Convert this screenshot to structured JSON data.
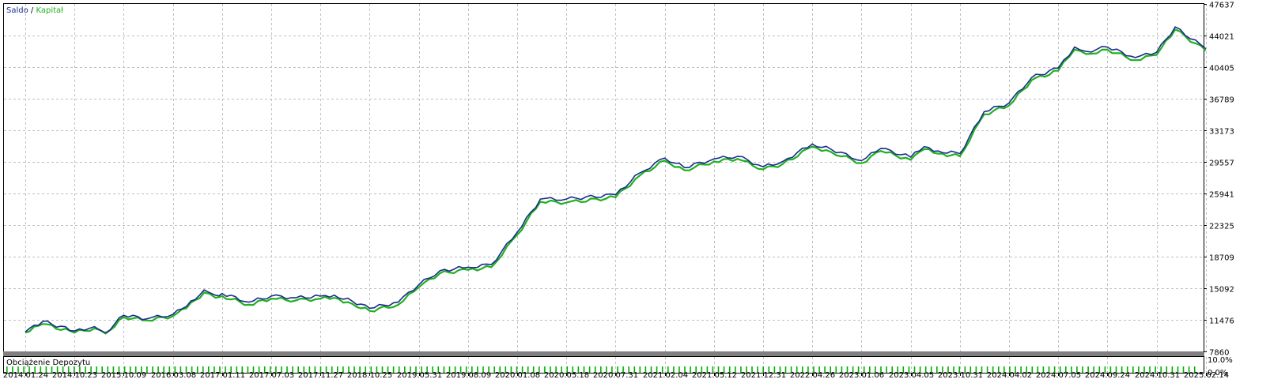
{
  "chart_data": [
    {
      "type": "line",
      "legend": {
        "balance_label": "Saldo",
        "separator": " / ",
        "equity_label": "Kapitał",
        "placement": "top-left"
      },
      "colors": {
        "balance": "#1a2c8c",
        "equity": "#1fb01f",
        "grid": "#c0c0c0",
        "background": "#ffffff"
      },
      "grid": true,
      "ylim": [
        7860,
        47637
      ],
      "yticks": [
        "47637",
        "44021",
        "40405",
        "36789",
        "33173",
        "29557",
        "25941",
        "22325",
        "18709",
        "15092",
        "11476",
        "7860"
      ],
      "x_dates": [
        "2014.01.24",
        "2014.10.23",
        "2015.10.09",
        "2016.03.08",
        "2017.01.11",
        "2017.07.03",
        "2017.11.27",
        "2018.10.25",
        "2019.05.31",
        "2019.08.09",
        "2020.01.08",
        "2020.05.18",
        "2020.07.31",
        "2021.02.04",
        "2021.05.12",
        "2021.12.31",
        "2022.04.26",
        "2023.01.06",
        "2023.04.05",
        "2023.10.31",
        "2024.04.02",
        "2024.07.05",
        "2024.09.24",
        "2024.10.31",
        "2025.02.14"
      ],
      "series": [
        {
          "name": "Saldo",
          "key": "balance",
          "points": [
            [
              "2014.01.24",
              10100
            ],
            [
              "2014.05.01",
              11300
            ],
            [
              "2014.10.23",
              10200
            ],
            [
              "2015.03.15",
              10700
            ],
            [
              "2015.06.01",
              10000
            ],
            [
              "2015.10.09",
              12000
            ],
            [
              "2015.12.20",
              11600
            ],
            [
              "2016.03.08",
              12100
            ],
            [
              "2016.06.01",
              13000
            ],
            [
              "2016.09.20",
              14900
            ],
            [
              "2016.12.01",
              14300
            ],
            [
              "2017.01.11",
              14500
            ],
            [
              "2017.04.15",
              13500
            ],
            [
              "2017.07.03",
              14200
            ],
            [
              "2017.09.15",
              14000
            ],
            [
              "2017.11.27",
              14200
            ],
            [
              "2018.03.01",
              14300
            ],
            [
              "2018.07.01",
              13600
            ],
            [
              "2018.10.25",
              12800
            ],
            [
              "2019.03.01",
              13500
            ],
            [
              "2019.05.31",
              15500
            ],
            [
              "2019.06.30",
              17100
            ],
            [
              "2019.08.09",
              17500
            ],
            [
              "2019.10.20",
              17800
            ],
            [
              "2020.01.08",
              21500
            ],
            [
              "2020.03.10",
              25300
            ],
            [
              "2020.05.18",
              25300
            ],
            [
              "2020.07.31",
              25800
            ],
            [
              "2020.11.01",
              28300
            ],
            [
              "2021.02.04",
              30000
            ],
            [
              "2021.03.15",
              28900
            ],
            [
              "2021.05.12",
              29900
            ],
            [
              "2021.09.01",
              30200
            ],
            [
              "2021.12.31",
              29000
            ],
            [
              "2022.02.15",
              29600
            ],
            [
              "2022.04.26",
              31600
            ],
            [
              "2022.08.01",
              31000
            ],
            [
              "2023.01.06",
              29700
            ],
            [
              "2023.02.10",
              31100
            ],
            [
              "2023.04.05",
              30100
            ],
            [
              "2023.06.01",
              31300
            ],
            [
              "2023.08.01",
              30800
            ],
            [
              "2023.10.31",
              30500
            ],
            [
              "2024.01.15",
              35300
            ],
            [
              "2024.04.02",
              36300
            ],
            [
              "2024.05.15",
              39200
            ],
            [
              "2024.07.05",
              40300
            ],
            [
              "2024.08.01",
              42700
            ],
            [
              "2024.08.20",
              42200
            ],
            [
              "2024.09.24",
              42700
            ],
            [
              "2024.10.15",
              41500
            ],
            [
              "2024.10.31",
              42100
            ],
            [
              "2024.12.10",
              45000
            ],
            [
              "2025.02.14",
              42500
            ]
          ]
        },
        {
          "name": "Kapitał",
          "key": "equity",
          "points": [
            [
              "2014.01.24",
              10000
            ],
            [
              "2014.05.01",
              11000
            ],
            [
              "2014.10.23",
              10000
            ],
            [
              "2015.03.15",
              10500
            ],
            [
              "2015.06.01",
              9900
            ],
            [
              "2015.10.09",
              11800
            ],
            [
              "2015.12.20",
              11400
            ],
            [
              "2016.03.08",
              11900
            ],
            [
              "2016.06.01",
              12800
            ],
            [
              "2016.09.20",
              14600
            ],
            [
              "2016.12.01",
              14000
            ],
            [
              "2017.01.11",
              14200
            ],
            [
              "2017.04.15",
              13200
            ],
            [
              "2017.07.03",
              13900
            ],
            [
              "2017.09.15",
              13700
            ],
            [
              "2017.11.27",
              13900
            ],
            [
              "2018.03.01",
              14000
            ],
            [
              "2018.07.01",
              13300
            ],
            [
              "2018.10.25",
              12500
            ],
            [
              "2019.03.01",
              13200
            ],
            [
              "2019.05.31",
              15200
            ],
            [
              "2019.06.30",
              16800
            ],
            [
              "2019.08.09",
              17200
            ],
            [
              "2019.10.20",
              17500
            ],
            [
              "2020.01.08",
              21200
            ],
            [
              "2020.03.10",
              25000
            ],
            [
              "2020.05.18",
              24900
            ],
            [
              "2020.07.31",
              25500
            ],
            [
              "2020.11.01",
              28000
            ],
            [
              "2021.02.04",
              29700
            ],
            [
              "2021.03.15",
              28600
            ],
            [
              "2021.05.12",
              29600
            ],
            [
              "2021.09.01",
              29900
            ],
            [
              "2021.12.31",
              28700
            ],
            [
              "2022.02.15",
              29300
            ],
            [
              "2022.04.26",
              31300
            ],
            [
              "2022.08.01",
              30700
            ],
            [
              "2023.01.06",
              29400
            ],
            [
              "2023.02.10",
              30800
            ],
            [
              "2023.04.05",
              29800
            ],
            [
              "2023.06.01",
              31000
            ],
            [
              "2023.08.01",
              30500
            ],
            [
              "2023.10.31",
              30200
            ],
            [
              "2024.01.15",
              35000
            ],
            [
              "2024.04.02",
              36000
            ],
            [
              "2024.05.15",
              38900
            ],
            [
              "2024.07.05",
              40000
            ],
            [
              "2024.08.01",
              42400
            ],
            [
              "2024.08.20",
              41900
            ],
            [
              "2024.09.24",
              42400
            ],
            [
              "2024.10.15",
              41200
            ],
            [
              "2024.10.31",
              41800
            ],
            [
              "2024.12.10",
              44700
            ],
            [
              "2025.02.14",
              42300
            ]
          ]
        }
      ]
    },
    {
      "type": "bar",
      "title": "Obciążenie Depozytu",
      "ylim": [
        0.0,
        10.0
      ],
      "yticks": [
        "10.0%",
        "0.0%"
      ],
      "bar_color": "#00b000",
      "bar_count": 213,
      "bar_value": 0.5
    }
  ]
}
